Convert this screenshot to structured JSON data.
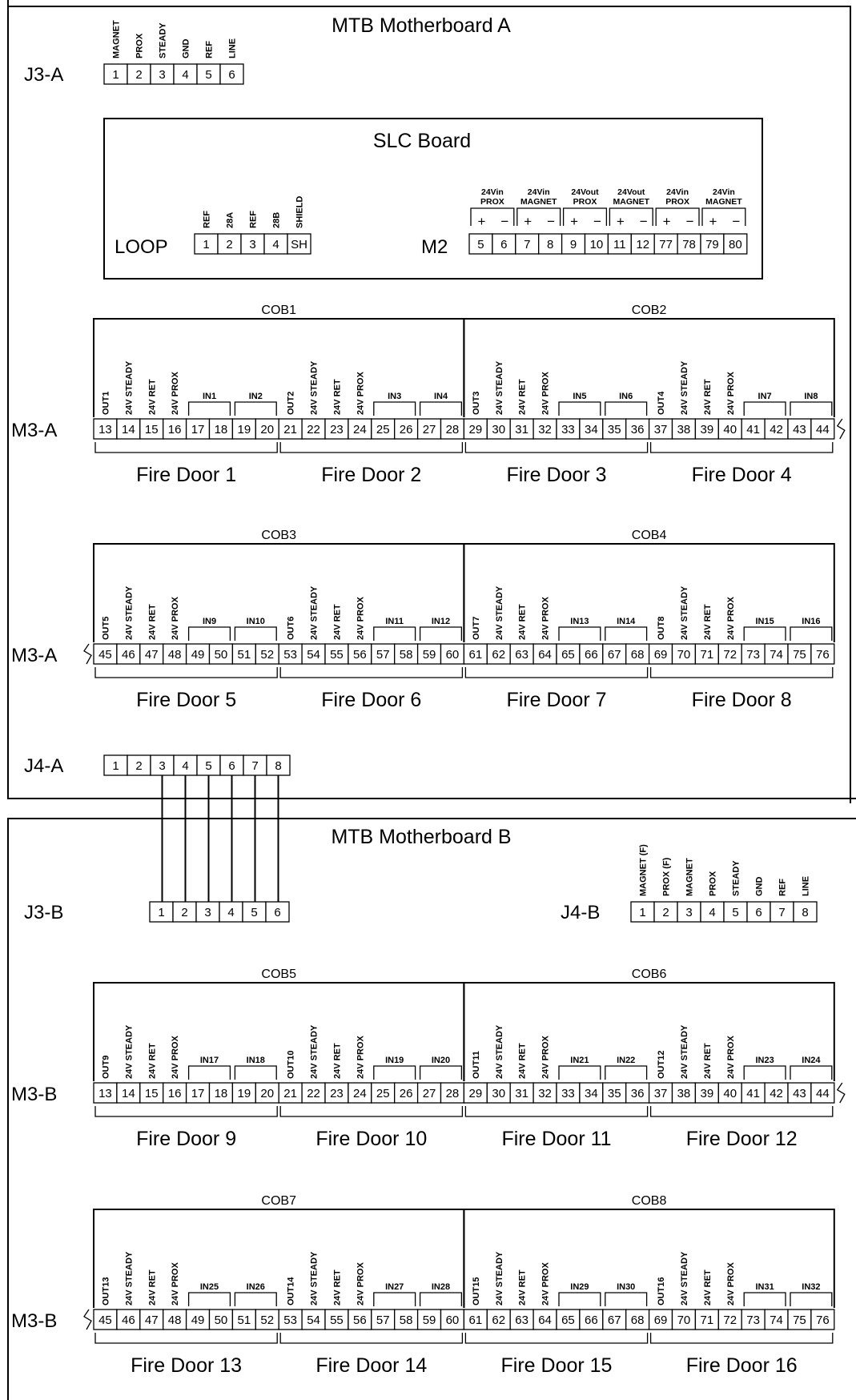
{
  "motherboard_a": {
    "title": "MTB Motherboard A",
    "j3": {
      "label": "J3-A",
      "pin_labels": [
        "MAGNET",
        "PROX",
        "STEADY",
        "GND",
        "REF",
        "LINE"
      ],
      "pins": [
        "1",
        "2",
        "3",
        "4",
        "5",
        "6"
      ]
    },
    "slc_board": {
      "title": "SLC Board",
      "loop": {
        "label": "LOOP",
        "pin_labels": [
          "REF",
          "28A",
          "REF",
          "28B",
          "SHIELD"
        ],
        "pins": [
          "1",
          "2",
          "3",
          "4",
          "SH"
        ]
      },
      "m2": {
        "label": "M2",
        "groups": [
          {
            "line1": "24Vin",
            "line2": "PROX"
          },
          {
            "line1": "24Vin",
            "line2": "MAGNET"
          },
          {
            "line1": "24Vout",
            "line2": "PROX"
          },
          {
            "line1": "24Vout",
            "line2": "MAGNET"
          },
          {
            "line1": "24Vin",
            "line2": "PROX"
          },
          {
            "line1": "24Vin",
            "line2": "MAGNET"
          }
        ],
        "plus": "+",
        "minus": "−",
        "pins": [
          "5",
          "6",
          "7",
          "8",
          "9",
          "10",
          "11",
          "12",
          "77",
          "78",
          "79",
          "80"
        ]
      }
    },
    "m3_row1": {
      "label": "M3-A",
      "cobs": [
        "COB1",
        "COB2"
      ],
      "outs": [
        "OUT1",
        "OUT2",
        "OUT3",
        "OUT4"
      ],
      "ins": [
        "IN1",
        "IN2",
        "IN3",
        "IN4",
        "IN5",
        "IN6",
        "IN7",
        "IN8"
      ],
      "pins": [
        "13",
        "14",
        "15",
        "16",
        "17",
        "18",
        "19",
        "20",
        "21",
        "22",
        "23",
        "24",
        "25",
        "26",
        "27",
        "28",
        "29",
        "30",
        "31",
        "32",
        "33",
        "34",
        "35",
        "36",
        "37",
        "38",
        "39",
        "40",
        "41",
        "42",
        "43",
        "44"
      ],
      "doors": [
        "Fire Door 1",
        "Fire Door 2",
        "Fire Door 3",
        "Fire Door 4"
      ]
    },
    "m3_row2": {
      "label": "M3-A",
      "cobs": [
        "COB3",
        "COB4"
      ],
      "outs": [
        "OUT5",
        "OUT6",
        "OUT7",
        "OUT8"
      ],
      "ins": [
        "IN9",
        "IN10",
        "IN11",
        "IN12",
        "IN13",
        "IN14",
        "IN15",
        "IN16"
      ],
      "pins": [
        "45",
        "46",
        "47",
        "48",
        "49",
        "50",
        "51",
        "52",
        "53",
        "54",
        "55",
        "56",
        "57",
        "58",
        "59",
        "60",
        "61",
        "62",
        "63",
        "64",
        "65",
        "66",
        "67",
        "68",
        "69",
        "70",
        "71",
        "72",
        "73",
        "74",
        "75",
        "76"
      ],
      "doors": [
        "Fire Door 5",
        "Fire Door 6",
        "Fire Door 7",
        "Fire Door 8"
      ]
    },
    "j4": {
      "label": "J4-A",
      "pins": [
        "1",
        "2",
        "3",
        "4",
        "5",
        "6",
        "7",
        "8"
      ]
    }
  },
  "motherboard_b": {
    "title": "MTB Motherboard B",
    "j3": {
      "label": "J3-B",
      "pins": [
        "1",
        "2",
        "3",
        "4",
        "5",
        "6"
      ]
    },
    "j4": {
      "label": "J4-B",
      "pin_labels": [
        "MAGNET (F)",
        "PROX (F)",
        "MAGNET",
        "PROX",
        "STEADY",
        "GND",
        "REF",
        "LINE"
      ],
      "pins": [
        "1",
        "2",
        "3",
        "4",
        "5",
        "6",
        "7",
        "8"
      ]
    },
    "m3_row1": {
      "label": "M3-B",
      "cobs": [
        "COB5",
        "COB6"
      ],
      "outs": [
        "OUT9",
        "OUT10",
        "OUT11",
        "OUT12"
      ],
      "ins": [
        "IN17",
        "IN18",
        "IN19",
        "IN20",
        "IN21",
        "IN22",
        "IN23",
        "IN24"
      ],
      "pins": [
        "13",
        "14",
        "15",
        "16",
        "17",
        "18",
        "19",
        "20",
        "21",
        "22",
        "23",
        "24",
        "25",
        "26",
        "27",
        "28",
        "29",
        "30",
        "31",
        "32",
        "33",
        "34",
        "35",
        "36",
        "37",
        "38",
        "39",
        "40",
        "41",
        "42",
        "43",
        "44"
      ],
      "doors": [
        "Fire Door 9",
        "Fire Door 10",
        "Fire Door 11",
        "Fire Door 12"
      ]
    },
    "m3_row2": {
      "label": "M3-B",
      "cobs": [
        "COB7",
        "COB8"
      ],
      "outs": [
        "OUT13",
        "OUT14",
        "OUT15",
        "OUT16"
      ],
      "ins": [
        "IN25",
        "IN26",
        "IN27",
        "IN28",
        "IN29",
        "IN30",
        "IN31",
        "IN32"
      ],
      "pins": [
        "45",
        "46",
        "47",
        "48",
        "49",
        "50",
        "51",
        "52",
        "53",
        "54",
        "55",
        "56",
        "57",
        "58",
        "59",
        "60",
        "61",
        "62",
        "63",
        "64",
        "65",
        "66",
        "67",
        "68",
        "69",
        "70",
        "71",
        "72",
        "73",
        "74",
        "75",
        "76"
      ],
      "doors": [
        "Fire Door 13",
        "Fire Door 14",
        "Fire Door 15",
        "Fire Door 16"
      ]
    }
  },
  "common_pin_labels": [
    "24V STEADY",
    "24V RET",
    "24V PROX"
  ]
}
